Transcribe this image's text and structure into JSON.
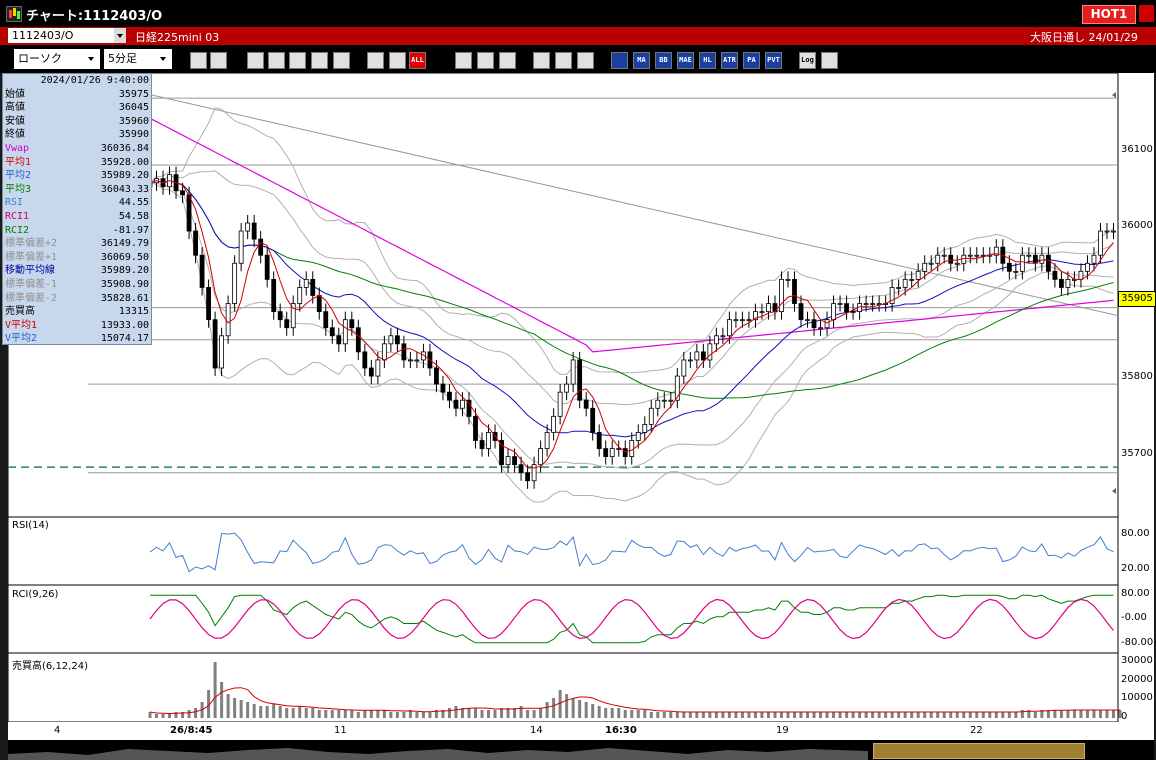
{
  "window": {
    "title": "チャート:1112403/O",
    "hot_label": "HOT1"
  },
  "symbol_bar": {
    "code": "1112403/O",
    "name": "日経225mini 03",
    "market_date": "大阪日通し 24/01/29"
  },
  "toolbar": {
    "chart_type": "ローソク",
    "timeframe": "5分足",
    "icons": [
      "search-icon",
      "crosshair-icon",
      "draw-icon",
      "zoom-icon",
      "compare-icon",
      "split-icon",
      "disabled-icon",
      "candle-up-icon",
      "candle-down-icon",
      "all-icon",
      "line-tool-icon",
      "cursor-icon",
      "undo-icon",
      "settings-icon",
      "edit-icon",
      "color-icon",
      "indicator-icon",
      "ma-icon",
      "bb-icon",
      "mae-icon",
      "hl-icon",
      "atr-icon",
      "pa-icon",
      "pvt-icon",
      "log-icon",
      "export-icon"
    ],
    "labels": {
      "all": "ALL",
      "ma": "MA",
      "bb": "BB",
      "mae": "MAE",
      "hl": "HL",
      "atr": "ATR",
      "pa": "PA",
      "pvt": "PVT",
      "log": "Log"
    }
  },
  "info_panel": {
    "datetime": "2024/01/26 9:40:00",
    "rows": [
      {
        "k": "始値",
        "v": "35975",
        "c": "#000000"
      },
      {
        "k": "高値",
        "v": "36045",
        "c": "#000000"
      },
      {
        "k": "安値",
        "v": "35960",
        "c": "#000000"
      },
      {
        "k": "終値",
        "v": "35990",
        "c": "#000000"
      },
      {
        "k": "Vwap",
        "v": "36036.84",
        "c": "#d000d0"
      },
      {
        "k": "平均1",
        "v": "35928.00",
        "c": "#d00000"
      },
      {
        "k": "平均2",
        "v": "35989.20",
        "c": "#2060d0"
      },
      {
        "k": "平均3",
        "v": "36043.33",
        "c": "#008000"
      },
      {
        "k": "RSI",
        "v": "44.55",
        "c": "#4080d0"
      },
      {
        "k": "RCI1",
        "v": "54.58",
        "c": "#d00060"
      },
      {
        "k": "RCI2",
        "v": "-81.97",
        "c": "#008000"
      },
      {
        "k": "標準偏差+2",
        "v": "36149.79",
        "c": "#909090"
      },
      {
        "k": "標準偏差+1",
        "v": "36069.50",
        "c": "#909090"
      },
      {
        "k": "移動平均線",
        "v": "35989.20",
        "c": "#0000a0"
      },
      {
        "k": "標準偏差-1",
        "v": "35908.90",
        "c": "#909090"
      },
      {
        "k": "標準偏差-2",
        "v": "35828.61",
        "c": "#909090"
      },
      {
        "k": "売買高",
        "v": "13315",
        "c": "#000000"
      },
      {
        "k": "V平均1",
        "v": "13933.00",
        "c": "#d00000"
      },
      {
        "k": "V平均2",
        "v": "15074.17",
        "c": "#2060d0"
      }
    ]
  },
  "price_axis": {
    "ticks": [
      "36100",
      "36000",
      "35900",
      "35800",
      "35700"
    ],
    "current": "35905"
  },
  "rsi_panel": {
    "title": "RSI(14)",
    "ticks": [
      "80.00",
      "20.00"
    ]
  },
  "rci_panel": {
    "title": "RCI(9,26)",
    "ticks": [
      "80.00",
      "-0.00",
      "-80.00"
    ]
  },
  "volume_panel": {
    "title": "売買高(6,12,24)",
    "ticks": [
      "30000",
      "20000",
      "10000",
      "0"
    ]
  },
  "x_axis": {
    "labels": [
      "4",
      "26/8:45",
      "11",
      "14",
      "16:30",
      "19",
      "22"
    ]
  },
  "colors": {
    "up": "#ffffff",
    "down": "#000000",
    "ma1": "#d00000",
    "ma2": "#1010c0",
    "ma3": "#008000",
    "vwap": "#e000e0",
    "band": "#b0b0b0",
    "rsi": "#4080d0",
    "rci1": "#e00080",
    "rci2": "#008000"
  },
  "chart_data": {
    "type": "candlestick",
    "price_range": [
      35640,
      36180
    ],
    "horizontal_lines": [
      36155,
      36072,
      35895,
      35855,
      35800,
      35690
    ],
    "dashed_line": 35697,
    "closes": [
      36050,
      36055,
      36045,
      36060,
      36040,
      36035,
      35990,
      35960,
      35920,
      35880,
      35820,
      35860,
      35900,
      35950,
      35990,
      36000,
      35980,
      35960,
      35930,
      35890,
      35880,
      35870,
      35900,
      35920,
      35930,
      35910,
      35890,
      35870,
      35860,
      35850,
      35880,
      35870,
      35840,
      35820,
      35810,
      35830,
      35850,
      35860,
      35850,
      35830,
      35830,
      35830,
      35840,
      35820,
      35800,
      35790,
      35780,
      35770,
      35780,
      35760,
      35730,
      35720,
      35740,
      35730,
      35700,
      35710,
      35700,
      35690,
      35680,
      35700,
      35720,
      35740,
      35760,
      35790,
      35800,
      35830,
      35780,
      35770,
      35740,
      35720,
      35710,
      35720,
      35720,
      35710,
      35730,
      35740,
      35750,
      35770,
      35780,
      35780,
      35780,
      35810,
      35830,
      35830,
      35840,
      35830,
      35850,
      35860,
      35860,
      35880,
      35880,
      35880,
      35880,
      35890,
      35890,
      35900,
      35890,
      35930,
      35930,
      35900,
      35880,
      35880,
      35870,
      35870,
      35880,
      35900,
      35900,
      35890,
      35890,
      35900,
      35900,
      35900,
      35900,
      35900,
      35920,
      35920,
      35930,
      35930,
      35940,
      35950,
      35950,
      35960,
      35960,
      35950,
      35950,
      35960,
      35960,
      35960,
      35960,
      35960,
      35970,
      35950,
      35940,
      35940,
      35960,
      35960,
      35950,
      35960,
      35940,
      35930,
      35920,
      35930,
      35930,
      35940,
      35950,
      35960,
      35990,
      35990,
      35990
    ],
    "volume_pattern": [
      3,
      2,
      2,
      2,
      3,
      3,
      4,
      5,
      8,
      14,
      28,
      18,
      12,
      10,
      9,
      8,
      7,
      6,
      6,
      7,
      6,
      5,
      5,
      6,
      5,
      5,
      4,
      4,
      4,
      4,
      4,
      4,
      3,
      4,
      4,
      4,
      4,
      3,
      3,
      3,
      4,
      3,
      3,
      3,
      4,
      4,
      5,
      6,
      5,
      5,
      5,
      4,
      4,
      4,
      5,
      5,
      5,
      6,
      4,
      4,
      5,
      8,
      10,
      14,
      12,
      10,
      9,
      8,
      7,
      6,
      5,
      5,
      5,
      4,
      4,
      4,
      4,
      3,
      3,
      3,
      3,
      3,
      3,
      3,
      3,
      3,
      3,
      3,
      3,
      3,
      3,
      3,
      3,
      3,
      3,
      3,
      3,
      3,
      3,
      3,
      3,
      3,
      3,
      3,
      3,
      3,
      3,
      3,
      3,
      3,
      3,
      3,
      3,
      3,
      3,
      3,
      3,
      3,
      3,
      3,
      3,
      3,
      3,
      3,
      3,
      3,
      3,
      3,
      3,
      3,
      3,
      3,
      3,
      3,
      4,
      4,
      3,
      4,
      4,
      4,
      4,
      4,
      4,
      4,
      4,
      4,
      4,
      4,
      4,
      4
    ]
  }
}
